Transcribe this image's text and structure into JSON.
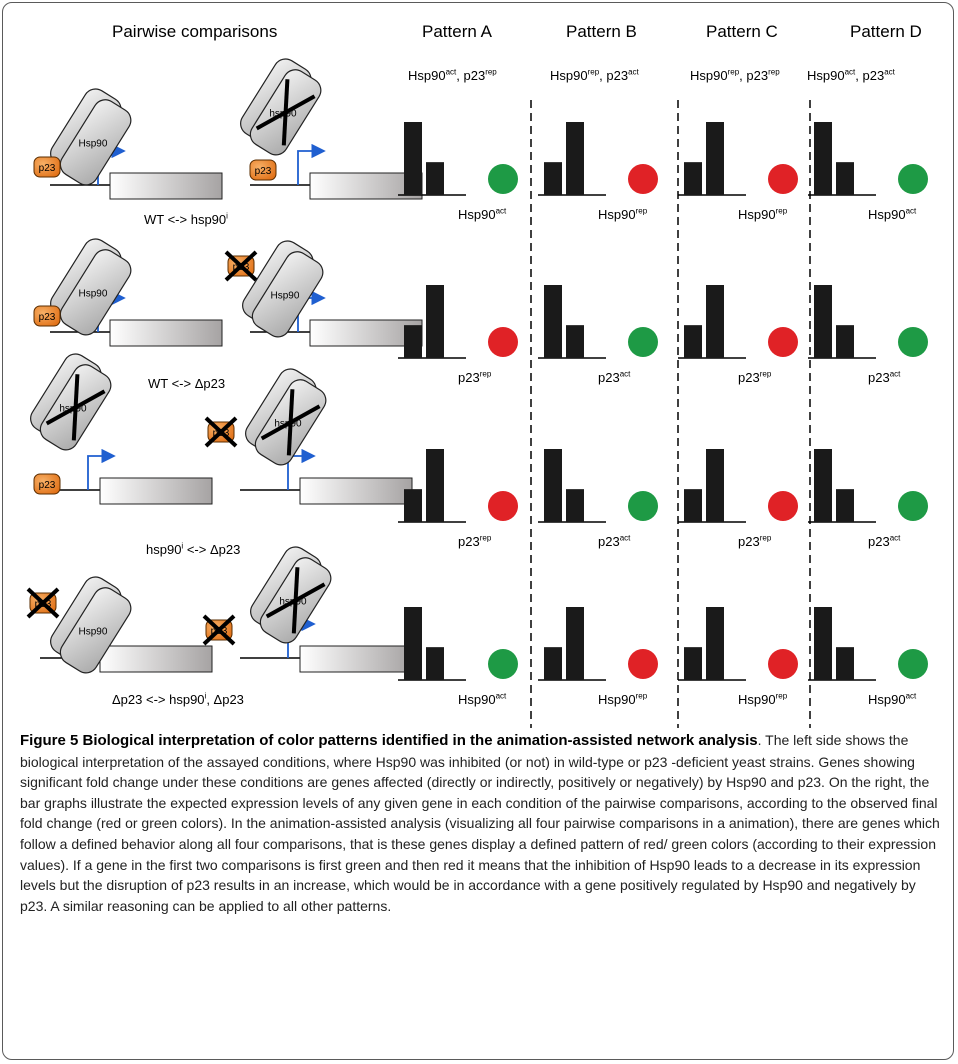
{
  "headers": {
    "pairwise": "Pairwise comparisons",
    "patterns": [
      "Pattern A",
      "Pattern B",
      "Pattern C",
      "Pattern D"
    ]
  },
  "pattern_subtitles": [
    {
      "hsp": "Hsp90",
      "hsp_sup": "act",
      "p23": "p23",
      "p23_sup": "rep"
    },
    {
      "hsp": "Hsp90",
      "hsp_sup": "rep",
      "p23": "p23",
      "p23_sup": "act"
    },
    {
      "hsp": "Hsp90",
      "hsp_sup": "rep",
      "p23": "p23",
      "p23_sup": "rep"
    },
    {
      "hsp": "Hsp90",
      "hsp_sup": "act",
      "p23": "p23",
      "p23_sup": "act"
    }
  ],
  "conditions": [
    {
      "left": "WT <-> hsp90",
      "left_sup": "i",
      "right": "",
      "right_sup": ""
    },
    {
      "left": "WT <-> Δp23",
      "left_sup": "",
      "right": "",
      "right_sup": ""
    },
    {
      "left": "hsp90",
      "left_sup": "i",
      "right": " <-> Δp23",
      "right_sup": ""
    },
    {
      "left": "Δp23 <-> hsp90",
      "left_sup": "i",
      "right": ", Δp23",
      "right_sup": ""
    }
  ],
  "diagram_text": {
    "hsp90": "Hsp90",
    "p23": "p23",
    "hsp90_small": "hsp90"
  },
  "colors": {
    "green": "#1e9a45",
    "red": "#e02226",
    "bar": "#1a1a1a",
    "p23": "#f0882a",
    "box_grad_start": "#ffffff",
    "box_grad_end": "#a6a3a3",
    "promoter": "#1f5fd0"
  },
  "grid": {
    "rows": [
      {
        "cells": [
          {
            "bars": [
              1.0,
              0.45
            ],
            "color": "green",
            "label": "Hsp90",
            "sup": "act"
          },
          {
            "bars": [
              0.45,
              1.0
            ],
            "color": "red",
            "label": "Hsp90",
            "sup": "rep"
          },
          {
            "bars": [
              0.45,
              1.0
            ],
            "color": "red",
            "label": "Hsp90",
            "sup": "rep"
          },
          {
            "bars": [
              1.0,
              0.45
            ],
            "color": "green",
            "label": "Hsp90",
            "sup": "act"
          }
        ]
      },
      {
        "cells": [
          {
            "bars": [
              0.45,
              1.0
            ],
            "color": "red",
            "label": "p23",
            "sup": "rep"
          },
          {
            "bars": [
              1.0,
              0.45
            ],
            "color": "green",
            "label": "p23",
            "sup": "act"
          },
          {
            "bars": [
              0.45,
              1.0
            ],
            "color": "red",
            "label": "p23",
            "sup": "rep"
          },
          {
            "bars": [
              1.0,
              0.45
            ],
            "color": "green",
            "label": "p23",
            "sup": "act"
          }
        ]
      },
      {
        "cells": [
          {
            "bars": [
              0.45,
              1.0
            ],
            "color": "red",
            "label": "p23",
            "sup": "rep"
          },
          {
            "bars": [
              1.0,
              0.45
            ],
            "color": "green",
            "label": "p23",
            "sup": "act"
          },
          {
            "bars": [
              0.45,
              1.0
            ],
            "color": "red",
            "label": "p23",
            "sup": "rep"
          },
          {
            "bars": [
              1.0,
              0.45
            ],
            "color": "green",
            "label": "p23",
            "sup": "act"
          }
        ]
      },
      {
        "cells": [
          {
            "bars": [
              1.0,
              0.45
            ],
            "color": "green",
            "label": "Hsp90",
            "sup": "act"
          },
          {
            "bars": [
              0.45,
              1.0
            ],
            "color": "red",
            "label": "Hsp90",
            "sup": "rep"
          },
          {
            "bars": [
              0.45,
              1.0
            ],
            "color": "red",
            "label": "Hsp90",
            "sup": "rep"
          },
          {
            "bars": [
              1.0,
              0.45
            ],
            "color": "green",
            "label": "Hsp90",
            "sup": "act"
          }
        ]
      }
    ]
  },
  "caption": {
    "title": "Figure 5 Biological interpretation of color patterns identified in the animation-assisted network analysis",
    "body": ". The left side shows the biological interpretation of the assayed conditions, where Hsp90 was inhibited (or not) in wild-type or p23 -deficient yeast strains. Genes showing significant fold change under these conditions are genes affected (directly or indirectly, positively or negatively) by Hsp90 and p23. On the right, the bar graphs illustrate the expected expression levels of any given gene in each condition of the pairwise comparisons, according to the observed final fold change (red or green colors). In the animation-assisted analysis (visualizing all four pairwise comparisons in a animation), there are genes which follow a defined behavior along all four comparisons, that is these genes display a defined pattern of red/ green colors (according to their expression values). If a gene in the first two comparisons is first green and then red it means that the inhibition of Hsp90 leads to a decrease in its expression levels but the disruption of p23 results in an increase, which would be in accordance with a gene positively regulated by Hsp90 and negatively by p23. A similar reasoning can be applied to all other patterns."
  }
}
